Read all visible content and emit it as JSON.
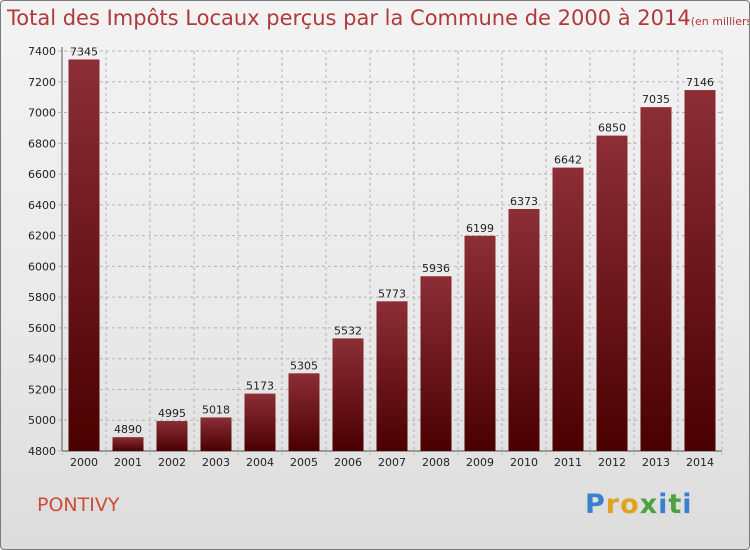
{
  "title": {
    "main": "Total des Impôts Locaux perçus par la Commune de 2000 à 2014",
    "unit": "(en milliers d'€)"
  },
  "footer": {
    "commune": "PONTIVY",
    "logo_text": "Proxiti",
    "logo_letters": [
      {
        "ch": "P",
        "color": "#3b7fd0"
      },
      {
        "ch": "r",
        "color": "#e2a11f"
      },
      {
        "ch": "o",
        "color": "#e2a11f"
      },
      {
        "ch": "x",
        "color": "#4aa33e"
      },
      {
        "ch": "i",
        "color": "#3b7fd0"
      },
      {
        "ch": "t",
        "color": "#4aa33e"
      },
      {
        "ch": "i",
        "color": "#3b7fd0"
      }
    ]
  },
  "colors": {
    "bar_top": "#8c2e36",
    "bar_bottom": "#4a0000",
    "grid": "#b4b4b4"
  },
  "chart_data": {
    "type": "bar",
    "title": "Total des Impôts Locaux perçus par la Commune de 2000 à 2014",
    "xlabel": "",
    "ylabel": "",
    "categories": [
      "2000",
      "2001",
      "2002",
      "2003",
      "2004",
      "2005",
      "2006",
      "2007",
      "2008",
      "2009",
      "2010",
      "2011",
      "2012",
      "2013",
      "2014"
    ],
    "values": [
      7345,
      4890,
      4995,
      5018,
      5173,
      5305,
      5532,
      5773,
      5936,
      6199,
      6373,
      6642,
      6850,
      7035,
      7146
    ],
    "ylim": [
      4800,
      7400
    ],
    "yticks": [
      4800,
      5000,
      5200,
      5400,
      5600,
      5800,
      6000,
      6200,
      6400,
      6600,
      6800,
      7000,
      7200,
      7400
    ],
    "grid": true
  }
}
